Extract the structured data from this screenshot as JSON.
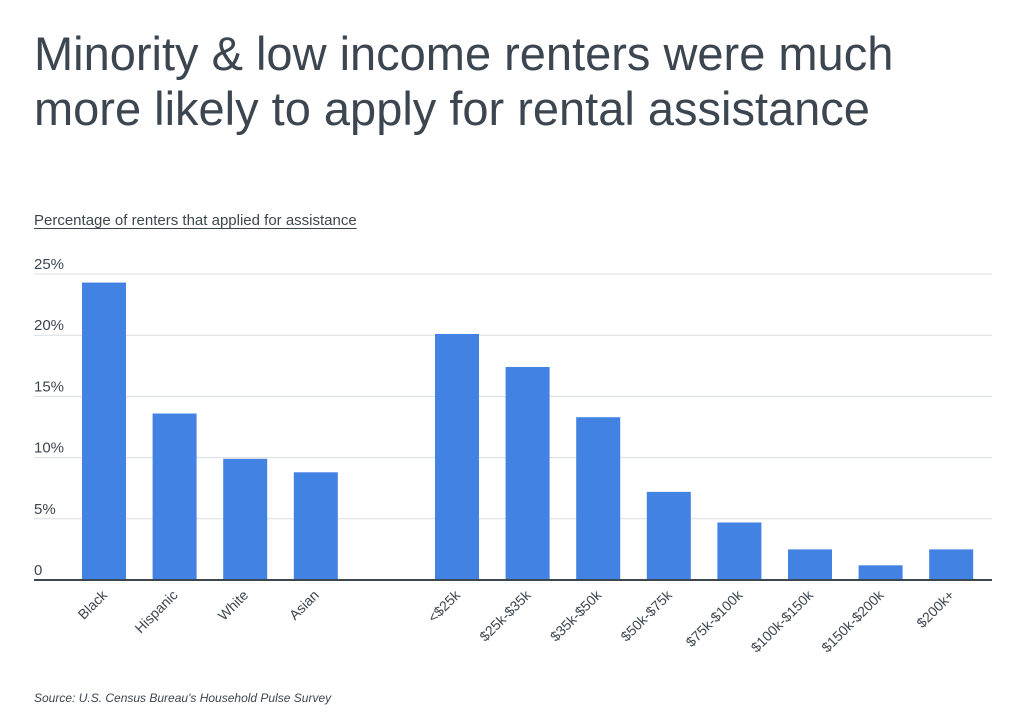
{
  "title": "Minority & low income renters were much more likely to apply for rental assistance",
  "subtitle": "Percentage of renters that applied for assistance",
  "source": "Source:  U.S. Census Bureau's Household Pulse Survey",
  "colors": {
    "bar": "#4282e2",
    "grid": "#d9dde1",
    "axis": "#3c4650",
    "text": "#3c4650"
  },
  "chart_data": {
    "type": "bar",
    "title": "Minority & low income renters were much more likely to apply for rental assistance",
    "ylabel": "Percentage of renters that applied for assistance",
    "xlabel": "",
    "ylim": [
      0,
      25
    ],
    "yticks": [
      0,
      5,
      10,
      15,
      20,
      25
    ],
    "ytick_labels": [
      "0",
      "5%",
      "10%",
      "15%",
      "20%",
      "25%"
    ],
    "grid": true,
    "groups": [
      {
        "categories": [
          "Black",
          "Hispanic",
          "White",
          "Asian"
        ],
        "values": [
          24.3,
          13.6,
          9.9,
          8.8
        ]
      },
      {
        "categories": [
          "<$25k",
          "$25k-$35k",
          "$35k-$50k",
          "$50k-$75k",
          "$75k-$100k",
          "$100k-$150k",
          "$150k-$200k",
          "$200k+"
        ],
        "values": [
          20.1,
          17.4,
          13.3,
          7.2,
          4.7,
          2.5,
          1.2,
          2.5
        ]
      }
    ]
  }
}
